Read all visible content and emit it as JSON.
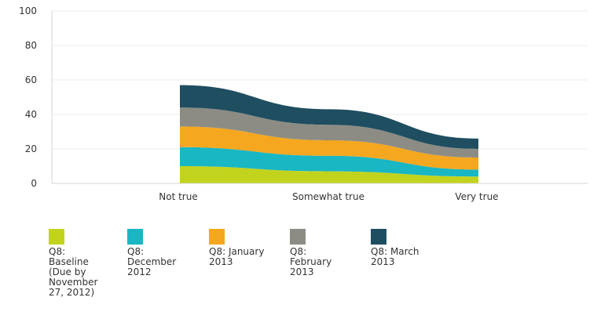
{
  "chart_data": {
    "type": "area",
    "stacked": true,
    "categories": [
      "Not true",
      "Somewhat true",
      "Very true"
    ],
    "ylim": [
      0,
      100
    ],
    "yticks": [
      0,
      20,
      40,
      60,
      80,
      100
    ],
    "grid": true,
    "legend_position": "bottom",
    "series": [
      {
        "name": "Q8:\nBaseline\n(Due by\nNovember\n27, 2012)",
        "color": "#c2d31e",
        "values": [
          10,
          7,
          4
        ]
      },
      {
        "name": "Q8:\nDecember\n2012",
        "color": "#19b6c4",
        "values": [
          11,
          9,
          4
        ]
      },
      {
        "name": "Q8: January\n2013",
        "color": "#f5a71f",
        "values": [
          12,
          9,
          7
        ]
      },
      {
        "name": "Q8:\nFebruary\n2013",
        "color": "#8c8c84",
        "values": [
          11,
          9,
          5
        ]
      },
      {
        "name": "Q8: March\n2013",
        "color": "#1f4e60",
        "values": [
          13,
          9,
          6
        ]
      }
    ]
  }
}
